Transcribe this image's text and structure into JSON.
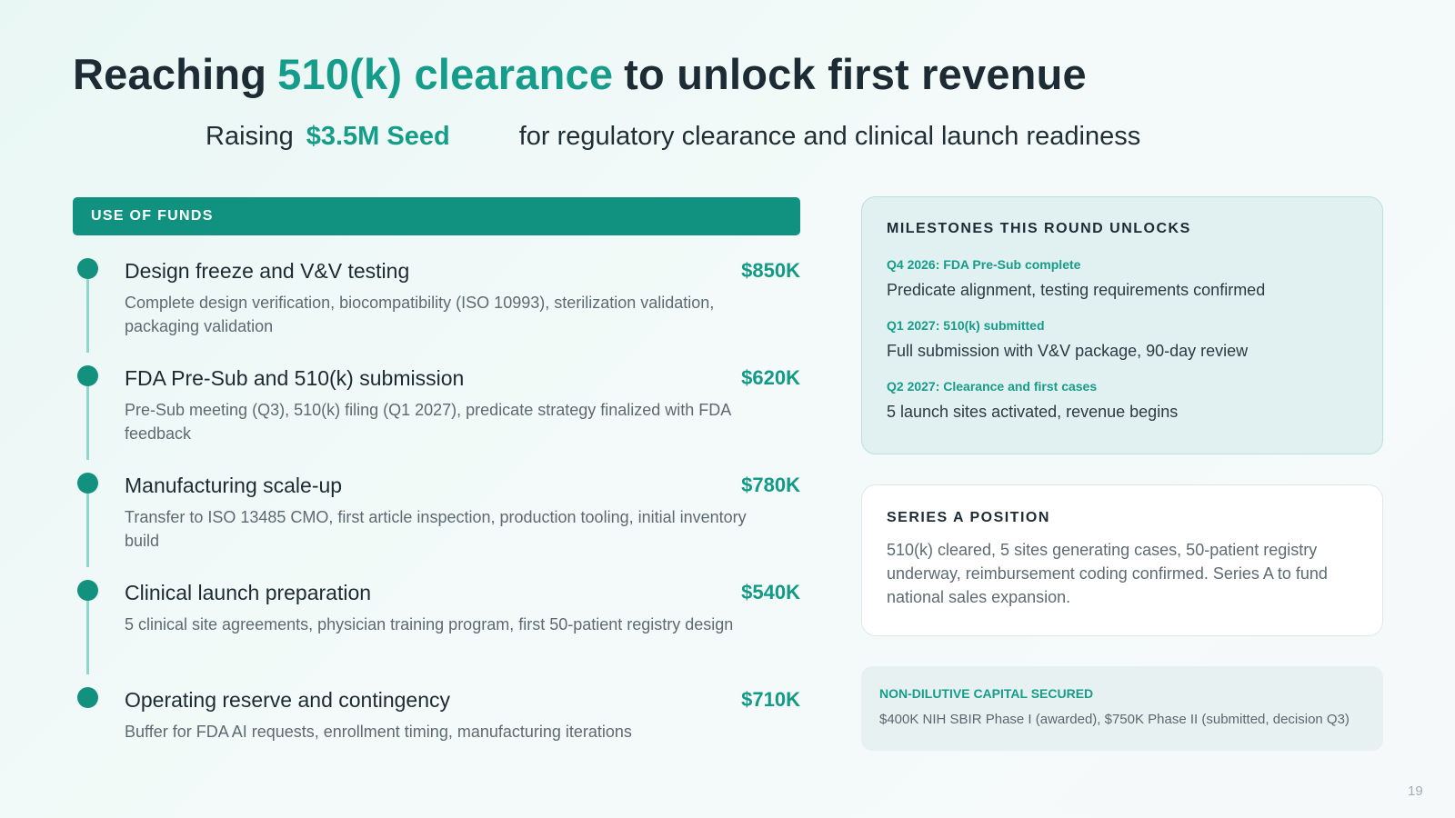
{
  "title": {
    "before": "Reaching",
    "accent": "510(k) clearance",
    "after": "to unlock first revenue"
  },
  "subtitle": {
    "before": "Raising",
    "accent": "$3.5M Seed",
    "after": "for regulatory clearance and clinical launch readiness"
  },
  "use_of_funds": {
    "heading": "USE OF FUNDS",
    "items": [
      {
        "title": "Design freeze and V&V testing",
        "amount": "$850K",
        "description": "Complete design verification, biocompatibility (ISO 10993), sterilization validation, packaging validation"
      },
      {
        "title": "FDA Pre-Sub and 510(k) submission",
        "amount": "$620K",
        "description": "Pre-Sub meeting (Q3), 510(k) filing (Q1 2027), predicate strategy finalized with FDA feedback"
      },
      {
        "title": "Manufacturing scale-up",
        "amount": "$780K",
        "description": "Transfer to ISO 13485 CMO, first article inspection, production tooling, initial inventory build"
      },
      {
        "title": "Clinical launch preparation",
        "amount": "$540K",
        "description": "5 clinical site agreements, physician training program, first 50-patient registry design"
      },
      {
        "title": "Operating reserve and contingency",
        "amount": "$710K",
        "description": "Buffer for FDA AI requests, enrollment timing, manufacturing iterations"
      }
    ]
  },
  "milestones": {
    "heading": "MILESTONES THIS ROUND UNLOCKS",
    "items": [
      {
        "label": "Q4 2026: FDA Pre-Sub complete",
        "text": "Predicate alignment, testing requirements confirmed"
      },
      {
        "label": "Q1 2027: 510(k) submitted",
        "text": "Full submission with V&V package, 90-day review"
      },
      {
        "label": "Q2 2027: Clearance and first cases",
        "text": "5 launch sites activated, revenue begins"
      }
    ]
  },
  "series_a": {
    "heading": "SERIES A POSITION",
    "text": "510(k) cleared, 5 sites generating cases, 50-patient registry underway, reimbursement coding confirmed. Series A to fund national sales expansion."
  },
  "non_dilutive": {
    "label": "NON-DILUTIVE CAPITAL SECURED",
    "text": "$400K NIH SBIR Phase I (awarded), $750K Phase II (submitted, decision Q3)"
  },
  "page_number": "19",
  "colors": {
    "accent": "#169c8a",
    "header_bar": "#11917f",
    "text_dark": "#1c2b34",
    "text_muted": "#5d6a72"
  }
}
